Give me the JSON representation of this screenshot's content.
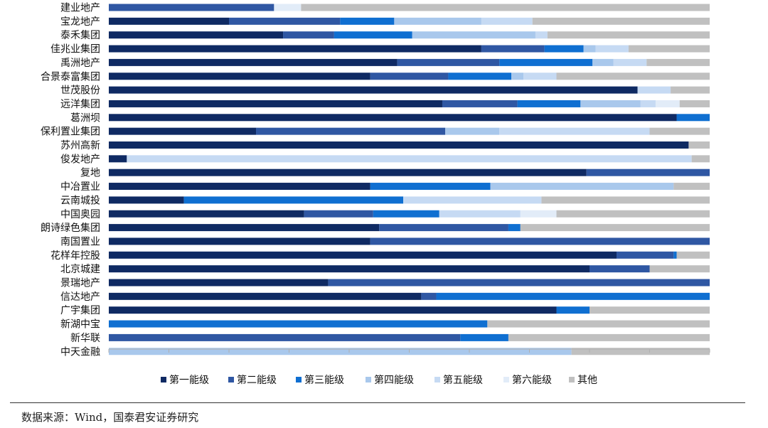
{
  "chart_data": {
    "type": "bar",
    "orientation": "horizontal",
    "stacked": true,
    "categories": [
      "建业地产",
      "宝龙地产",
      "泰禾集团",
      "佳兆业集团",
      "禹洲地产",
      "合景泰富集团",
      "世茂股份",
      "远洋集团",
      "葛洲坝",
      "保利置业集团",
      "苏州高新",
      "俊发地产",
      "复地",
      "中冶置业",
      "云南城投",
      "中国奥园",
      "朗诗绿色集团",
      "南国置业",
      "花样年控股",
      "北京城建",
      "景瑞地产",
      "信达地产",
      "广宇集团",
      "新湖中宝",
      "新华联",
      "中天金融"
    ],
    "series": [
      {
        "name": "第一能级",
        "color": "#0f2a63",
        "values": [
          0,
          20,
          29,
          62,
          48,
          43.5,
          88,
          55.5,
          94.5,
          24.5,
          96.5,
          3,
          79.5,
          43.5,
          12.5,
          32.5,
          45,
          43.5,
          84.5,
          80,
          36.5,
          52,
          74.5,
          0,
          0,
          0
        ]
      },
      {
        "name": "第二能级",
        "color": "#2f57a3",
        "values": [
          27.5,
          18.5,
          8.5,
          10.5,
          17,
          13,
          0,
          12.5,
          0,
          31.5,
          0,
          0,
          20.5,
          0,
          0,
          11.5,
          21.5,
          56.5,
          9.5,
          10,
          63.5,
          2.5,
          0,
          0,
          58.5,
          0
        ]
      },
      {
        "name": "第三能级",
        "color": "#0f6fd1",
        "values": [
          0,
          9,
          13,
          6.5,
          15.5,
          10.5,
          0,
          10.5,
          5.5,
          0,
          0,
          0,
          0,
          20,
          36.5,
          11,
          2,
          0,
          0.5,
          0,
          0,
          45.5,
          5.5,
          63,
          8,
          0
        ]
      },
      {
        "name": "第四能级",
        "color": "#a9c8ec",
        "values": [
          0,
          14.5,
          20.5,
          2,
          3.5,
          2,
          0,
          10,
          0,
          9,
          0,
          0,
          0,
          30.5,
          0,
          0,
          0,
          0,
          0,
          0,
          0,
          0,
          0,
          0,
          0,
          77
        ]
      },
      {
        "name": "第五能级",
        "color": "#c6daf3",
        "values": [
          0,
          8.5,
          2,
          5.5,
          5.5,
          5.5,
          5.5,
          2.5,
          0,
          25,
          0,
          94,
          0,
          0,
          23,
          13.5,
          0,
          0,
          0,
          0,
          0,
          0,
          0,
          0,
          0,
          0
        ]
      },
      {
        "name": "第六能级",
        "color": "#e2ecf8",
        "values": [
          4.5,
          0,
          0,
          0,
          0,
          0,
          0,
          4,
          0,
          0,
          0,
          0,
          0,
          0,
          0,
          6,
          0,
          0,
          0,
          0,
          0,
          0,
          0,
          0,
          0,
          0
        ]
      },
      {
        "name": "其他",
        "color": "#c0c0c0",
        "values": [
          68,
          29.5,
          27,
          13.5,
          10.5,
          25.5,
          6.5,
          5,
          0,
          10,
          3.5,
          3,
          0,
          6,
          28,
          25.5,
          31.5,
          0,
          5.5,
          10,
          0,
          0,
          20,
          37,
          33.5,
          23
        ]
      }
    ],
    "xlim": [
      0,
      100
    ],
    "legend_position": "bottom",
    "grid": false
  },
  "source": {
    "text": "数据来源：Wind，国泰君安证券研究"
  }
}
